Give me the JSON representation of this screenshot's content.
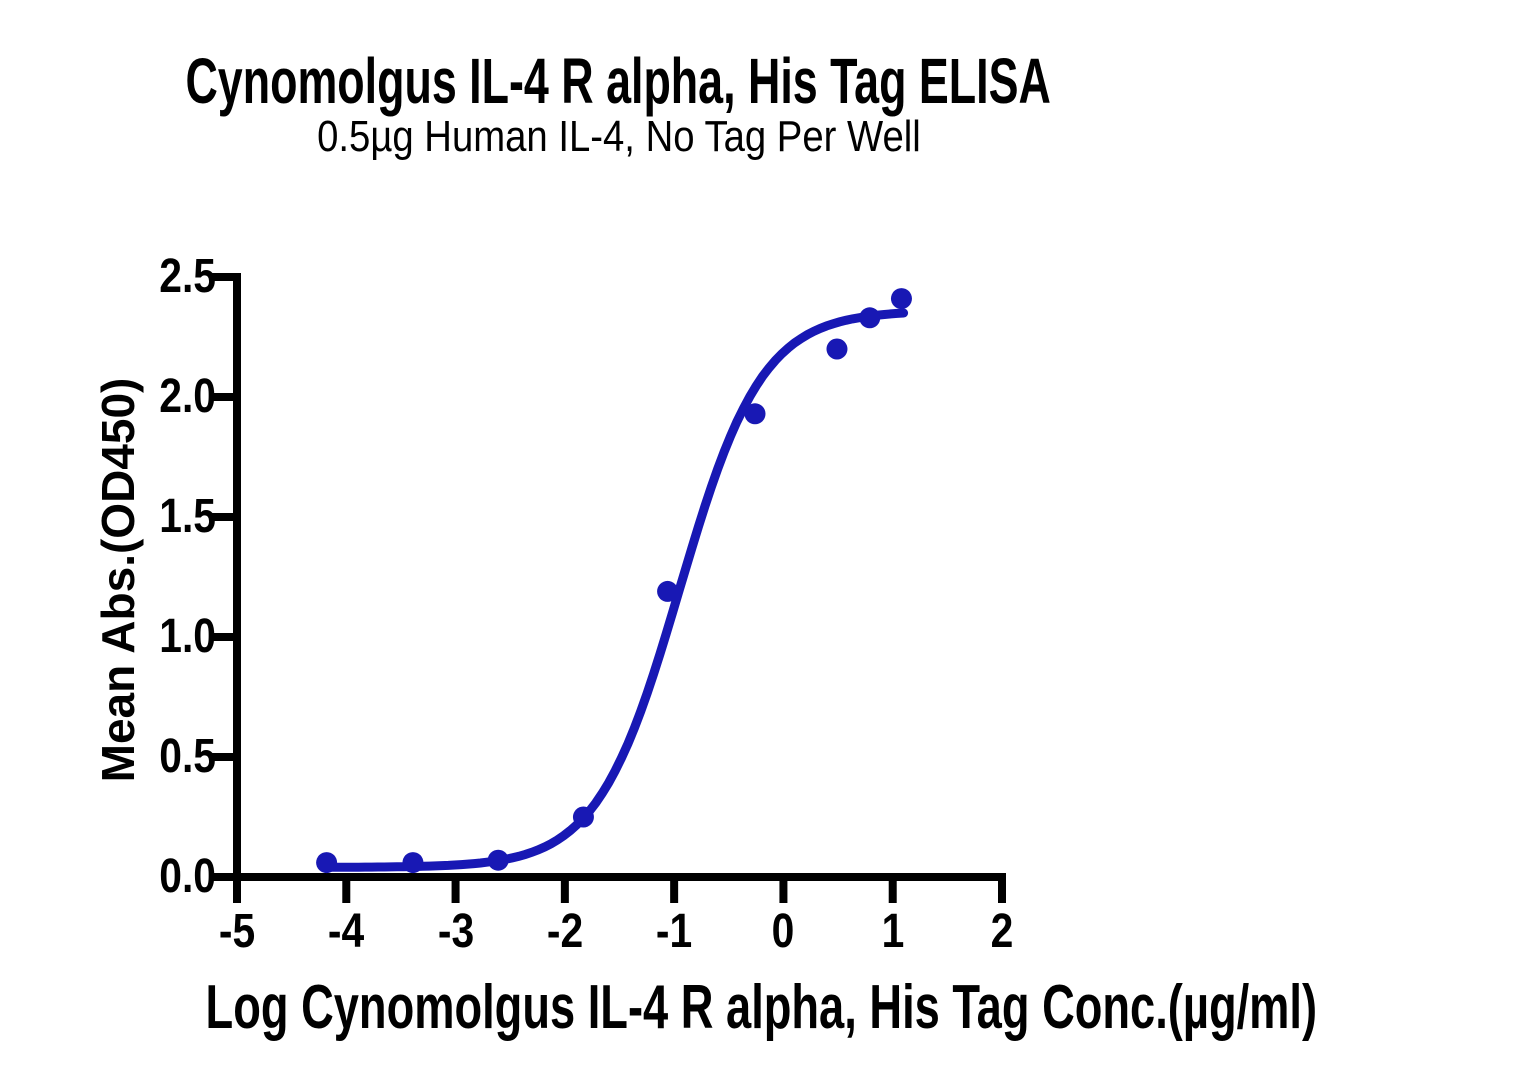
{
  "chart_data": {
    "type": "scatter",
    "title": "Cynomolgus IL-4 R alpha, His Tag ELISA",
    "subtitle": "0.5µg Human IL-4, No Tag Per Well",
    "xlabel": "Log Cynomolgus IL-4 R alpha, His Tag Conc.(µg/ml)",
    "ylabel": "Mean Abs.(OD450)",
    "xlim": [
      -5,
      2
    ],
    "ylim": [
      0,
      2.5
    ],
    "xticks": [
      -5,
      -4,
      -3,
      -2,
      -1,
      0,
      1,
      2
    ],
    "xtick_labels": [
      "-5",
      "-4",
      "-3",
      "-2",
      "-1",
      "0",
      "1",
      "2"
    ],
    "yticks": [
      0,
      0.5,
      1,
      1.5,
      2,
      2.5
    ],
    "ytick_labels": [
      "0.0",
      "0.5",
      "1.0",
      "1.5",
      "2.0",
      "2.5"
    ],
    "grid": false,
    "legend": null,
    "axis_color": "#000000",
    "series": [
      {
        "color": "#1818b4",
        "points": [
          {
            "x": -4.18,
            "y": 0.06
          },
          {
            "x": -3.39,
            "y": 0.06
          },
          {
            "x": -2.61,
            "y": 0.07
          },
          {
            "x": -1.83,
            "y": 0.25
          },
          {
            "x": -1.06,
            "y": 1.19
          },
          {
            "x": -0.26,
            "y": 1.93
          },
          {
            "x": 0.49,
            "y": 2.2
          },
          {
            "x": 0.79,
            "y": 2.33
          },
          {
            "x": 1.08,
            "y": 2.41
          }
        ],
        "fit_curve": {
          "model": "4PL",
          "bottom": 0.04,
          "top": 2.36,
          "log_ec50": -0.95,
          "hill_slope": 1.15,
          "x_start": -4.18,
          "x_end": 1.1
        }
      }
    ]
  }
}
